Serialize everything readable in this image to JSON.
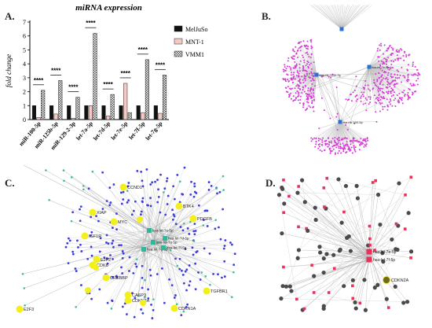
{
  "panels": {
    "a": {
      "letter": "A."
    },
    "b": {
      "letter": "B."
    },
    "c": {
      "letter": "C."
    },
    "d": {
      "letter": "D."
    }
  },
  "chart_data": {
    "type": "bar",
    "title": "miRNA expression",
    "ylabel": "fold change",
    "xlabel": "",
    "ylim": [
      0,
      7
    ],
    "yticks": [
      "0",
      "1",
      "2",
      "3",
      "4",
      "5",
      "6",
      "7"
    ],
    "categories": [
      "miR-100-5p",
      "miR-125b-5p",
      "miR-129-2-3p",
      "let-7a-5p",
      "let-7d-5p",
      "let-7e-5p",
      "let-7f-5p",
      "let-7g-5p"
    ],
    "series": [
      {
        "name": "MelJuSo",
        "color": "#111111",
        "values": [
          1,
          1,
          1,
          1,
          1,
          1,
          1,
          1
        ]
      },
      {
        "name": "MNT-1",
        "color": "#f6c9c4",
        "values": [
          0.15,
          0.4,
          0.1,
          1.0,
          0.25,
          2.6,
          0.5,
          0.45
        ]
      },
      {
        "name": "VMM1",
        "color": "#cfcfcf",
        "values": [
          2.1,
          2.8,
          1.6,
          6.2,
          1.8,
          0.5,
          4.3,
          3.2
        ]
      }
    ],
    "significance": [
      "****",
      "****",
      "****",
      "****",
      "****",
      "****",
      "****",
      "****"
    ],
    "legend_position": "right",
    "grid": false
  },
  "network_b": {
    "hub_labels": [
      "hsa-let-7e-5p",
      "hsa-mir-125b-5p",
      "hsa-mir-100-5p"
    ]
  },
  "network_c": {
    "hub_labels": [
      "hsa-let-7e-5p",
      "hsa-let-7d-5p",
      "hsa-let-7a-5p",
      "hsa-let-7g-5p",
      "hsa-let-7f-5p"
    ],
    "gene_labels": [
      "CCND1",
      "PDGFB",
      "BTK4",
      "XIAP",
      "MYC",
      "IGF1R",
      "E2F2",
      "CDK6",
      "CREBBP",
      "E2F3",
      "CASP3",
      "CDKN2A",
      "CDKN1A",
      "TGFBR1"
    ]
  },
  "network_d": {
    "hub_labels": [
      "hsa-let-7e-5p",
      "hsa-let-7f-5p"
    ],
    "gene_labels": [
      "CDKN2A"
    ]
  }
}
